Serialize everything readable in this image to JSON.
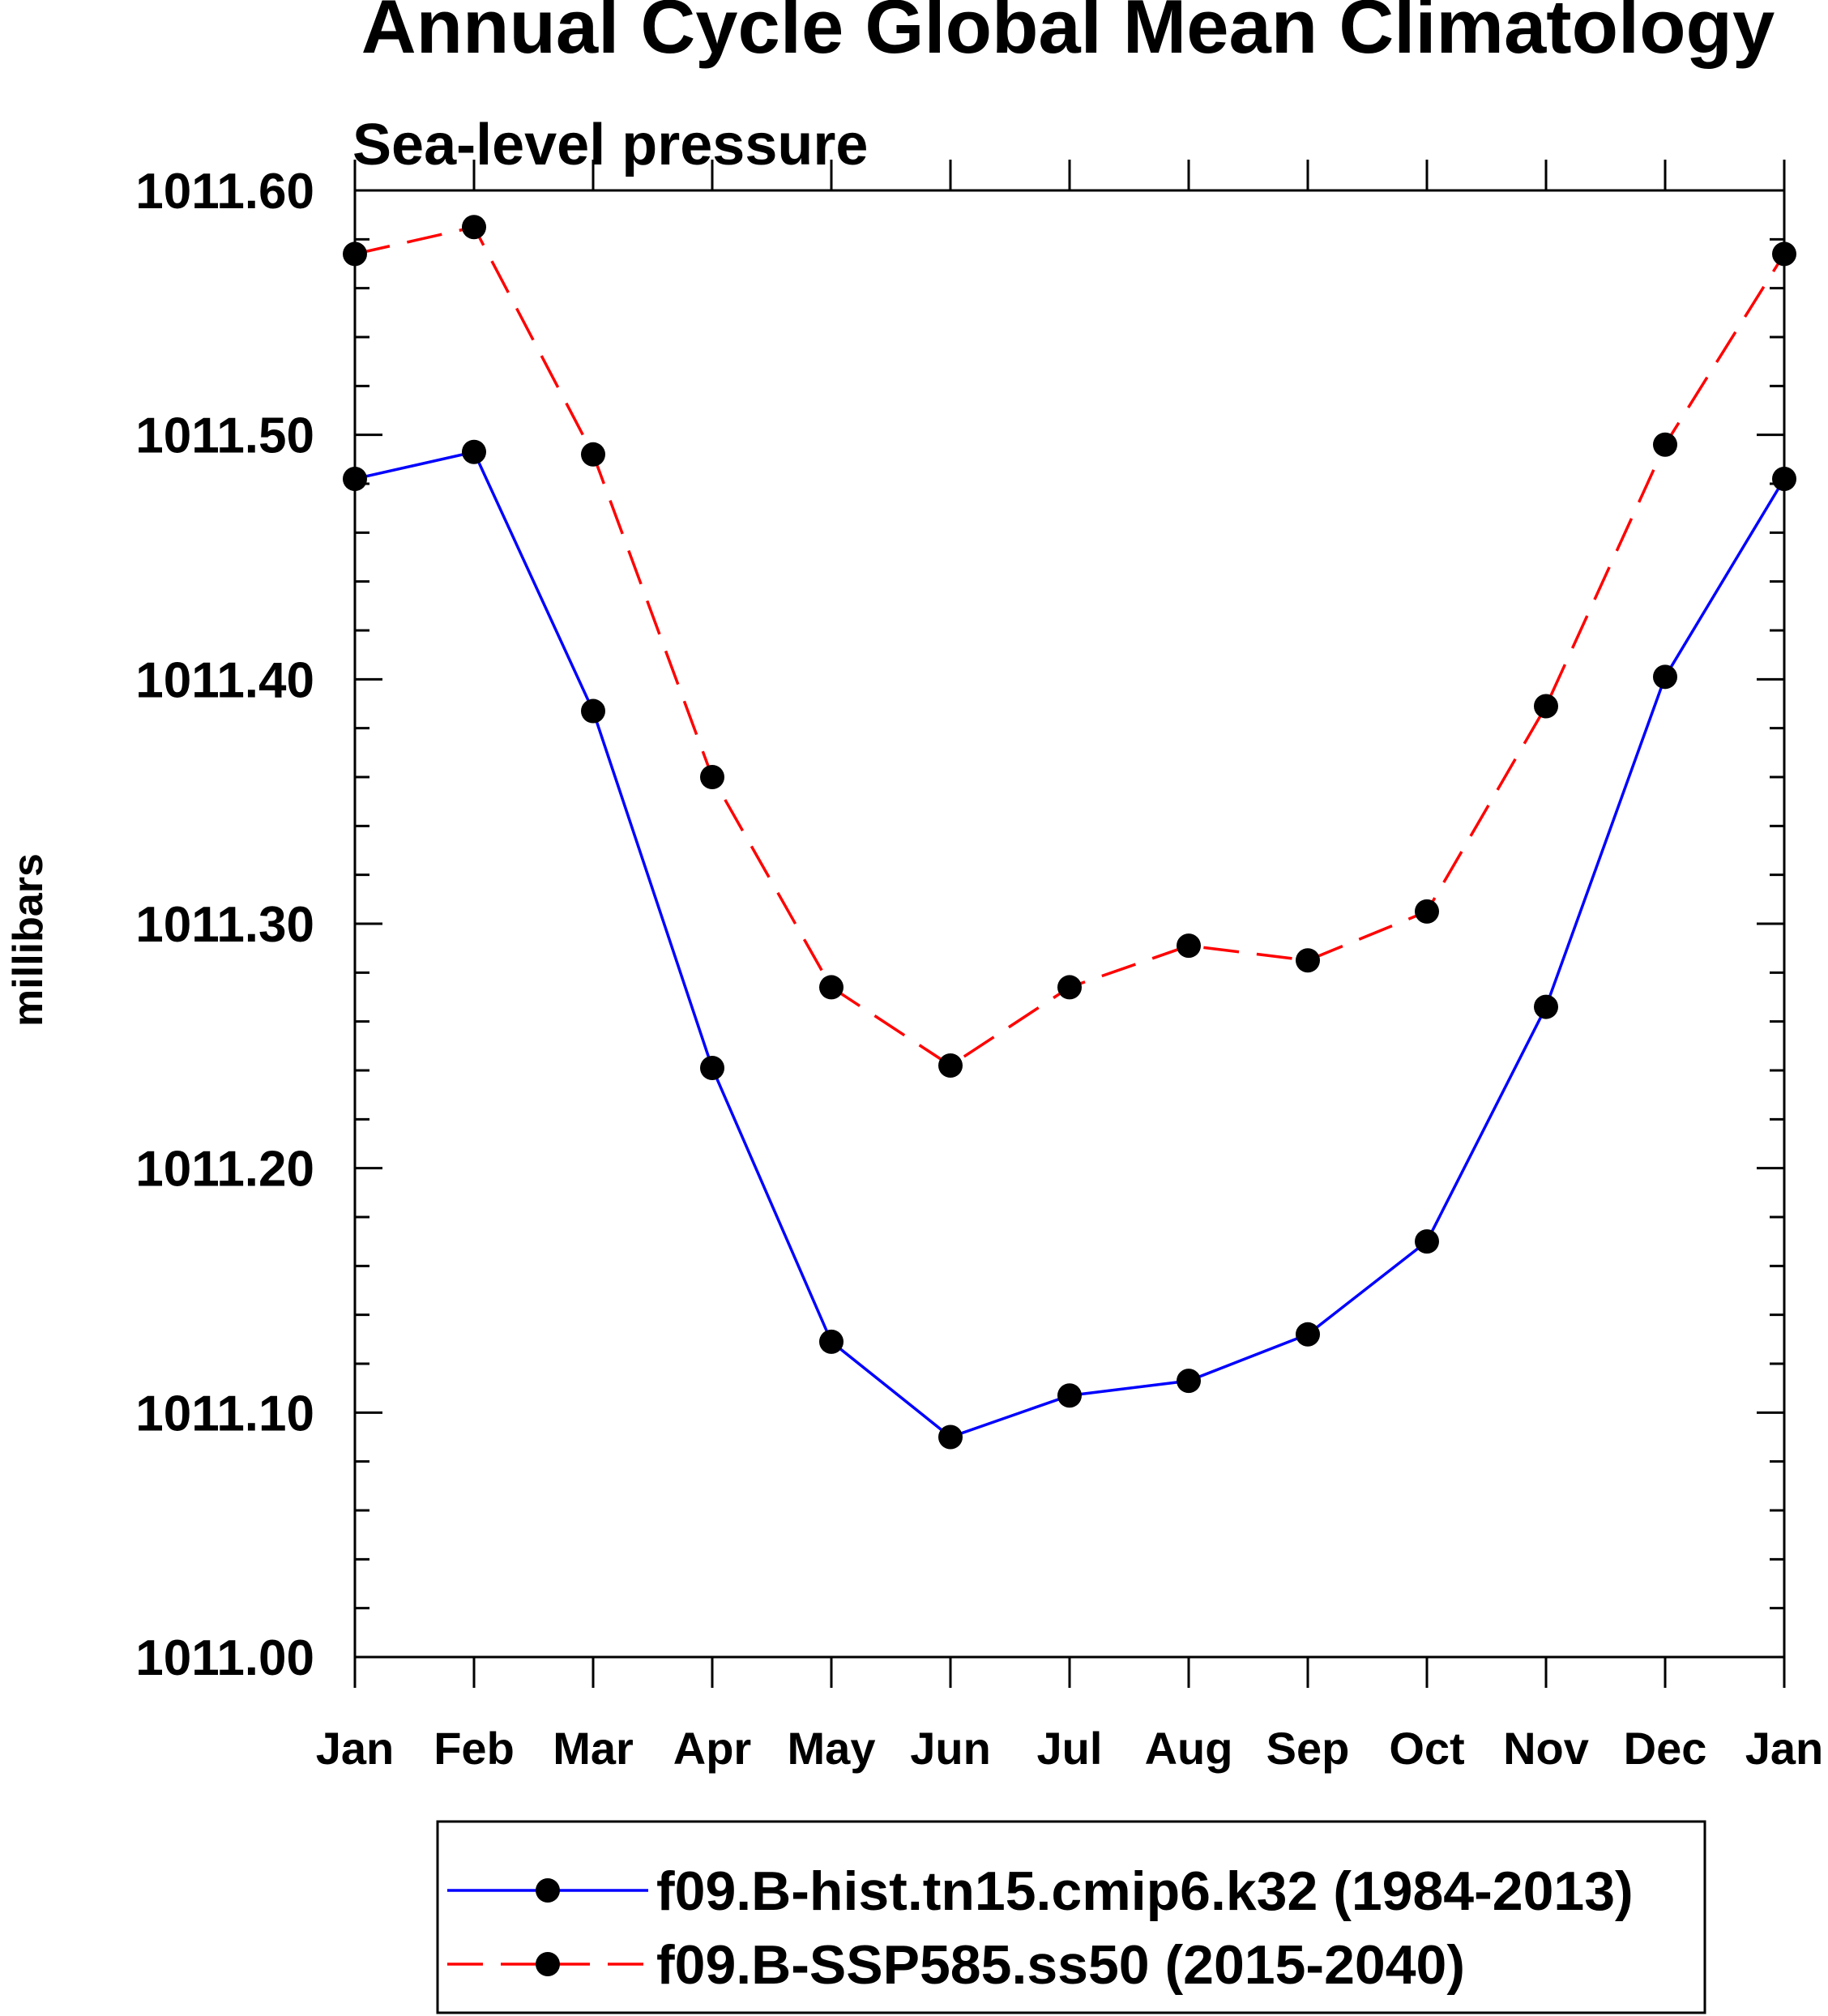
{
  "chart_data": {
    "type": "line",
    "title": "Annual Cycle Global Mean Climatology",
    "subtitle": "Sea-level pressure",
    "ylabel": "millibars",
    "xlabel": "",
    "categories": [
      "Jan",
      "Feb",
      "Mar",
      "Apr",
      "May",
      "Jun",
      "Jul",
      "Aug",
      "Sep",
      "Oct",
      "Nov",
      "Dec",
      "Jan"
    ],
    "ylim": [
      1011.0,
      1011.6
    ],
    "yticks": [
      "1011.00",
      "1011.10",
      "1011.20",
      "1011.30",
      "1011.40",
      "1011.50",
      "1011.60"
    ],
    "series": [
      {
        "name": "f09.B-hist.tn15.cmip6.k32 (1984-2013)",
        "color": "#0000ff",
        "dash": "solid",
        "values": [
          1011.482,
          1011.493,
          1011.387,
          1011.241,
          1011.129,
          1011.09,
          1011.107,
          1011.113,
          1011.132,
          1011.17,
          1011.266,
          1011.401,
          1011.482
        ]
      },
      {
        "name": "f09.B-SSP585.ss50 (2015-2040)",
        "color": "#ff0000",
        "dash": "dashed",
        "values": [
          1011.574,
          1011.585,
          1011.492,
          1011.36,
          1011.274,
          1011.242,
          1011.274,
          1011.291,
          1011.285,
          1011.305,
          1011.389,
          1011.496,
          1011.574
        ]
      }
    ],
    "marker_color": "#000000",
    "grid": false,
    "legend_position": "bottom-center"
  }
}
